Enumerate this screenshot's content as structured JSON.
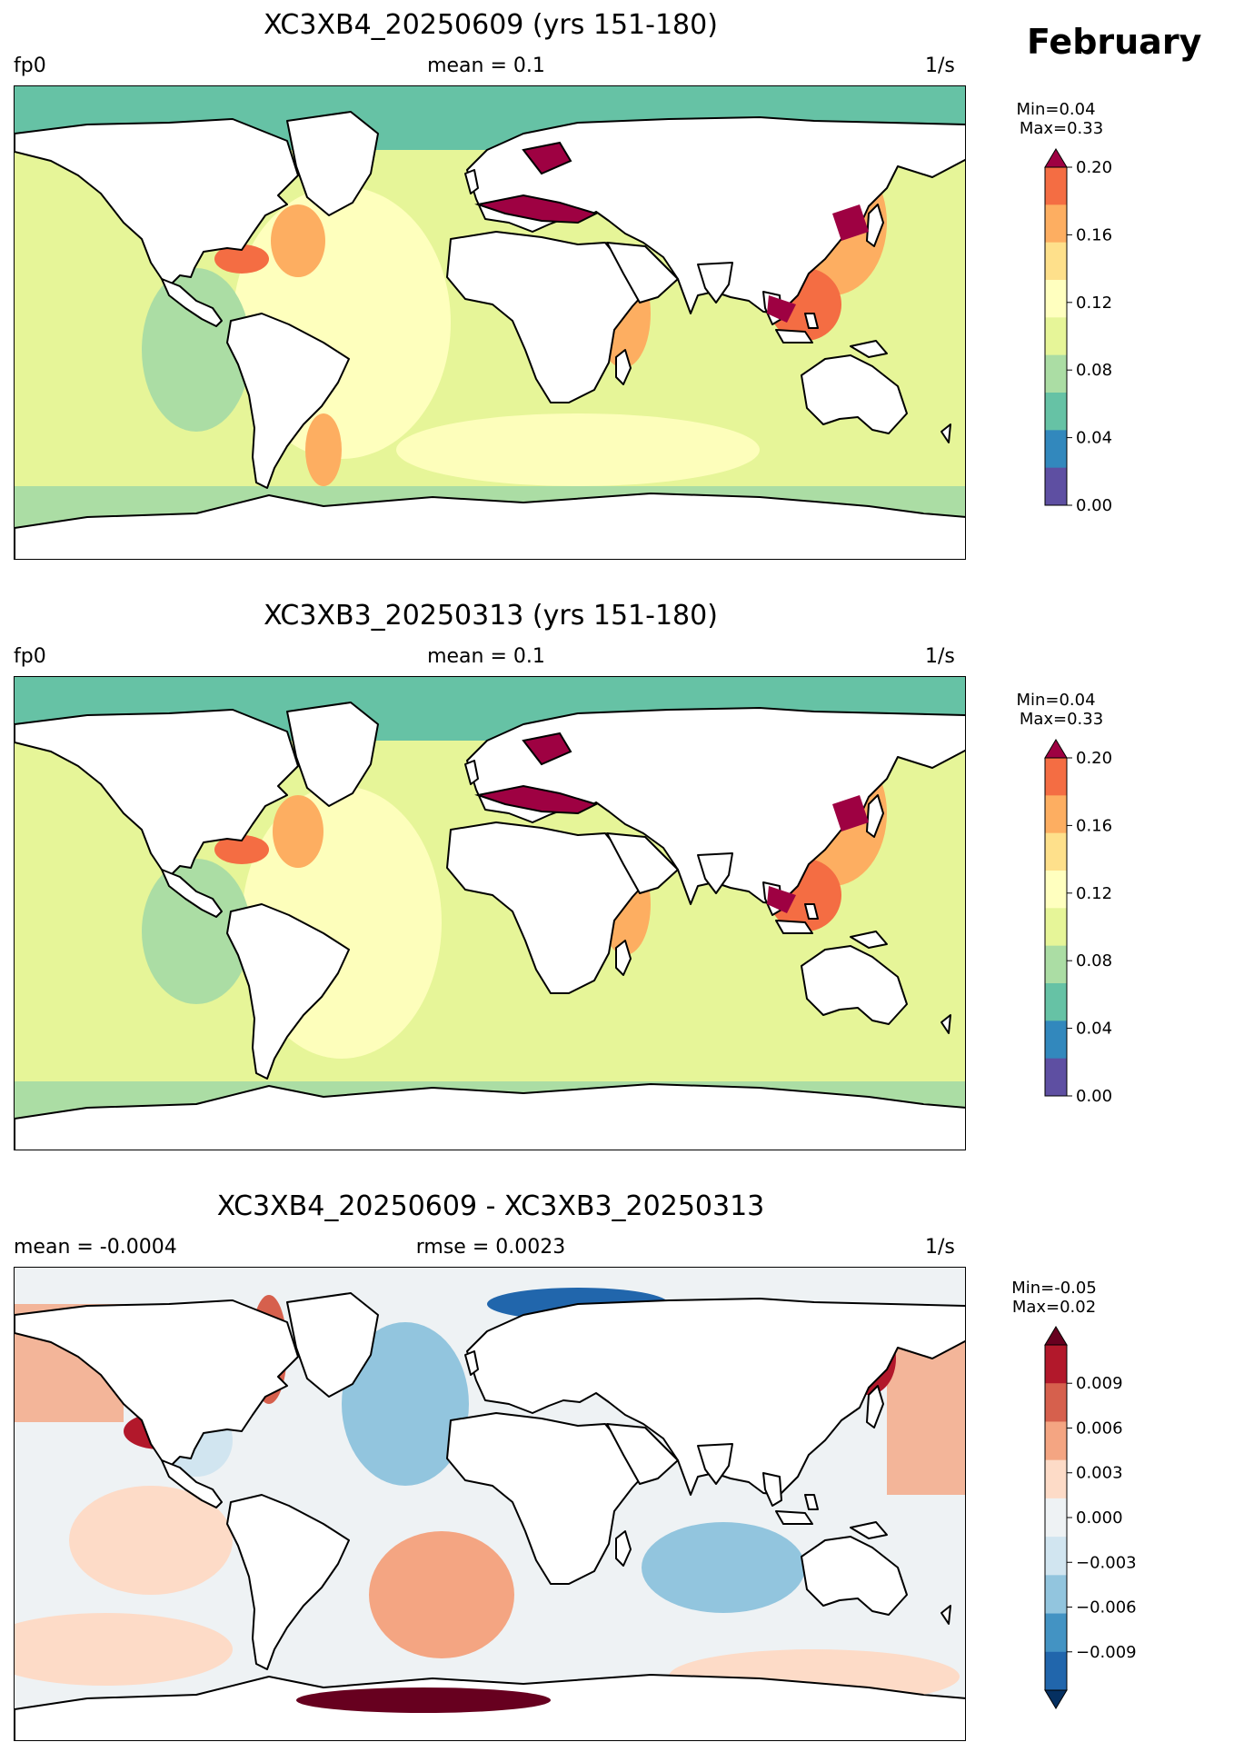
{
  "month": "February",
  "panels": [
    {
      "title": "XC3XB4_20250609 (yrs 151-180)",
      "left": "fp0",
      "center": "mean = 0.1",
      "right": "1/s",
      "min": "Min=0.04",
      "max": "Max=0.33",
      "colorbar": {
        "ticks": [
          "0.00",
          "0.04",
          "0.08",
          "0.12",
          "0.16",
          "0.20"
        ],
        "colors": [
          "#5e4fa2",
          "#3288bd",
          "#66c2a5",
          "#abdda4",
          "#e6f598",
          "#ffffbf",
          "#fee08b",
          "#fdae61",
          "#f46d43",
          "#9e0142"
        ]
      }
    },
    {
      "title": "XC3XB3_20250313 (yrs 151-180)",
      "left": "fp0",
      "center": "mean = 0.1",
      "right": "1/s",
      "min": "Min=0.04",
      "max": "Max=0.33",
      "colorbar": {
        "ticks": [
          "0.00",
          "0.04",
          "0.08",
          "0.12",
          "0.16",
          "0.20"
        ],
        "colors": [
          "#5e4fa2",
          "#3288bd",
          "#66c2a5",
          "#abdda4",
          "#e6f598",
          "#ffffbf",
          "#fee08b",
          "#fdae61",
          "#f46d43",
          "#9e0142"
        ]
      }
    },
    {
      "title": "XC3XB4_20250609 - XC3XB3_20250313",
      "left": "mean = -0.0004",
      "center": "rmse = 0.0023",
      "right": "1/s",
      "min": "Min=-0.05",
      "max": "Max=0.02",
      "colorbar": {
        "ticks": [
          "−0.009",
          "−0.006",
          "−0.003",
          "0.000",
          "0.003",
          "0.006",
          "0.009"
        ],
        "colors": [
          "#053061",
          "#2166ac",
          "#4393c3",
          "#92c5de",
          "#d1e5f0",
          "#eef2f4",
          "#fddbc7",
          "#f4a582",
          "#d6604d",
          "#b2182b",
          "#67001f"
        ]
      }
    }
  ]
}
